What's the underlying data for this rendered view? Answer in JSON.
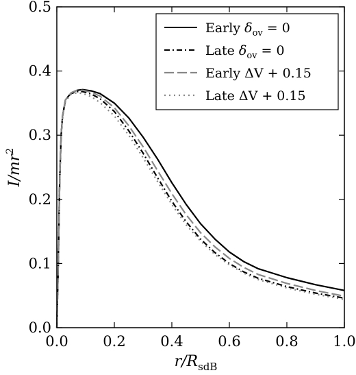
{
  "chart_data": {
    "type": "line",
    "xlabel": "r/R_sdB",
    "ylabel": "I/mr^2",
    "xlim": [
      0.0,
      1.0
    ],
    "ylim": [
      0.0,
      0.5
    ],
    "xticks": [
      "0.0",
      "0.2",
      "0.4",
      "0.6",
      "0.8",
      "1.0"
    ],
    "yticks": [
      "0.0",
      "0.1",
      "0.2",
      "0.3",
      "0.4",
      "0.5"
    ],
    "grid": false,
    "legend_position": "top-right",
    "series": [
      {
        "name": "Early δov = 0",
        "color": "#000000",
        "style": "solid",
        "x": [
          0.0,
          0.005,
          0.01,
          0.015,
          0.02,
          0.03,
          0.05,
          0.07,
          0.09,
          0.12,
          0.15,
          0.2,
          0.25,
          0.3,
          0.35,
          0.4,
          0.45,
          0.5,
          0.55,
          0.6,
          0.65,
          0.7,
          0.8,
          0.9,
          1.0
        ],
        "values": [
          0.0,
          0.1,
          0.23,
          0.3,
          0.33,
          0.355,
          0.366,
          0.37,
          0.371,
          0.369,
          0.365,
          0.35,
          0.327,
          0.297,
          0.263,
          0.226,
          0.192,
          0.162,
          0.138,
          0.118,
          0.103,
          0.092,
          0.078,
          0.067,
          0.058
        ]
      },
      {
        "name": "Late δov = 0",
        "color": "#000000",
        "style": "dashdot",
        "x": [
          0.0,
          0.005,
          0.01,
          0.015,
          0.02,
          0.03,
          0.05,
          0.07,
          0.09,
          0.12,
          0.15,
          0.2,
          0.25,
          0.3,
          0.35,
          0.4,
          0.45,
          0.5,
          0.55,
          0.6,
          0.65,
          0.7,
          0.8,
          0.9,
          1.0
        ],
        "values": [
          0.0,
          0.1,
          0.23,
          0.3,
          0.33,
          0.354,
          0.365,
          0.368,
          0.368,
          0.364,
          0.357,
          0.337,
          0.307,
          0.272,
          0.234,
          0.197,
          0.165,
          0.138,
          0.117,
          0.1,
          0.087,
          0.077,
          0.064,
          0.054,
          0.046
        ]
      },
      {
        "name": "Early ΔV + 0.15",
        "color": "#888888",
        "style": "dashed",
        "x": [
          0.0,
          0.005,
          0.01,
          0.015,
          0.02,
          0.03,
          0.05,
          0.07,
          0.09,
          0.12,
          0.15,
          0.2,
          0.25,
          0.3,
          0.35,
          0.4,
          0.45,
          0.5,
          0.55,
          0.6,
          0.65,
          0.7,
          0.8,
          0.9,
          1.0
        ],
        "values": [
          0.0,
          0.1,
          0.23,
          0.3,
          0.33,
          0.355,
          0.366,
          0.37,
          0.37,
          0.367,
          0.361,
          0.343,
          0.315,
          0.282,
          0.245,
          0.209,
          0.176,
          0.148,
          0.126,
          0.108,
          0.094,
          0.083,
          0.069,
          0.058,
          0.049
        ]
      },
      {
        "name": "Late ΔV + 0.15",
        "color": "#888888",
        "style": "dotted",
        "x": [
          0.0,
          0.005,
          0.01,
          0.015,
          0.02,
          0.03,
          0.05,
          0.07,
          0.09,
          0.12,
          0.15,
          0.2,
          0.25,
          0.3,
          0.35,
          0.4,
          0.45,
          0.5,
          0.55,
          0.6,
          0.65,
          0.7,
          0.8,
          0.9,
          1.0
        ],
        "values": [
          0.0,
          0.1,
          0.23,
          0.3,
          0.33,
          0.353,
          0.364,
          0.366,
          0.365,
          0.36,
          0.351,
          0.33,
          0.3,
          0.265,
          0.228,
          0.192,
          0.16,
          0.135,
          0.114,
          0.098,
          0.085,
          0.075,
          0.062,
          0.052,
          0.044
        ]
      }
    ]
  }
}
